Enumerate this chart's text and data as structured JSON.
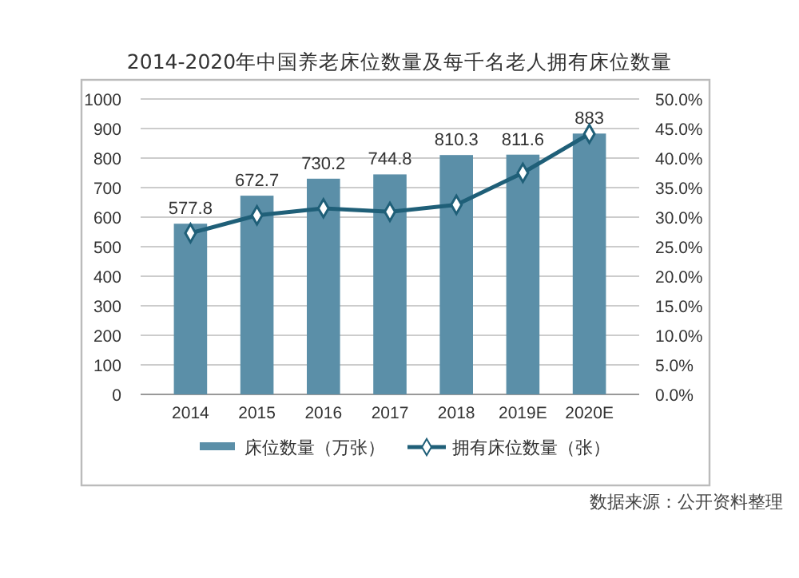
{
  "chart_data": {
    "type": "bar",
    "title": "2014-2020年中国养老床位数量及每千名老人拥有床位数量",
    "categories": [
      "2014",
      "2015",
      "2016",
      "2017",
      "2018",
      "2019E",
      "2020E"
    ],
    "series": [
      {
        "name": "床位数量（万张）",
        "color": "#5b8fa8",
        "values": [
          577.8,
          672.7,
          730.2,
          744.8,
          810.3,
          811.6,
          883
        ],
        "value_labels": [
          "577.8",
          "672.7",
          "730.2",
          "744.8",
          "810.3",
          "811.6",
          "883"
        ]
      },
      {
        "name": "拥有床位数量（张）",
        "type": "line",
        "axis": "y2",
        "color": "#1f5f78",
        "marker": "diamond",
        "values": [
          27.3,
          30.3,
          31.5,
          30.9,
          32.1,
          37.5,
          44.1
        ]
      }
    ],
    "ylim": [
      0,
      1000
    ],
    "yticks": [
      0,
      100,
      200,
      300,
      400,
      500,
      600,
      700,
      800,
      900,
      1000
    ],
    "y2lim": [
      0,
      50
    ],
    "y2ticks": [
      {
        "value": 0,
        "label": "0.0%"
      },
      {
        "value": 5,
        "label": "5.0%"
      },
      {
        "value": 10,
        "label": "10.0%"
      },
      {
        "value": 15,
        "label": "15.0%"
      },
      {
        "value": 20,
        "label": "20.0%"
      },
      {
        "value": 25,
        "label": "25.0%"
      },
      {
        "value": 30,
        "label": "30.0%"
      },
      {
        "value": 35,
        "label": "35.0%"
      },
      {
        "value": 40,
        "label": "40.0%"
      },
      {
        "value": 45,
        "label": "45.0%"
      },
      {
        "value": 50,
        "label": "50.0%"
      }
    ],
    "grid": "y",
    "legend": "bottom",
    "annotations": [
      "数据来源：公开资料整理"
    ]
  }
}
